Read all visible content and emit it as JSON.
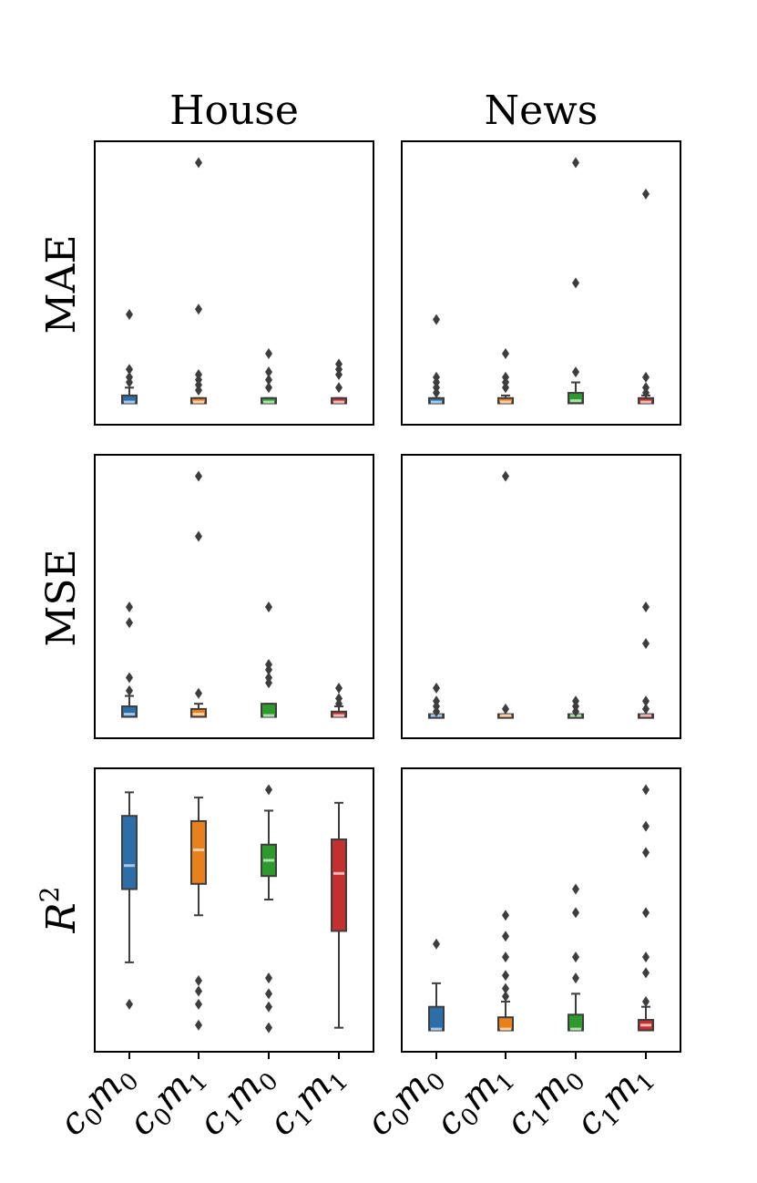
{
  "chart_data": {
    "type": "box",
    "columns": [
      "House",
      "News"
    ],
    "rows": [
      "MAE",
      "MSE",
      "R^2"
    ],
    "row_label_display": {
      "MAE": "MAE",
      "MSE": "MSE",
      "R^2": "R"
    },
    "categories": [
      {
        "base": "c",
        "sub1": "0",
        "mid": "m",
        "sub2": "0"
      },
      {
        "base": "c",
        "sub1": "0",
        "mid": "m",
        "sub2": "1"
      },
      {
        "base": "c",
        "sub1": "1",
        "mid": "m",
        "sub2": "0"
      },
      {
        "base": "c",
        "sub1": "1",
        "mid": "m",
        "sub2": "1"
      }
    ],
    "colors": [
      "#2c6ea8",
      "#e8801c",
      "#2e9a2e",
      "#c43030"
    ],
    "median_colors": [
      "#a8c8e8",
      "#ffd0a8",
      "#b0e0b0",
      "#f0b8b8"
    ],
    "ylim": [
      0,
      1
    ],
    "grid": false,
    "panels": [
      {
        "row": "MAE",
        "col": "House",
        "boxes": [
          {
            "q1": 0.04,
            "median": 0.045,
            "q3": 0.07,
            "wlo": 0.04,
            "whi": 0.1,
            "outliers": [
              0.38,
              0.17,
              0.12,
              0.14
            ]
          },
          {
            "q1": 0.04,
            "median": 0.045,
            "q3": 0.06,
            "wlo": 0.04,
            "whi": 0.06,
            "outliers": [
              0.96,
              0.4,
              0.15,
              0.13,
              0.11,
              0.09
            ]
          },
          {
            "q1": 0.04,
            "median": 0.045,
            "q3": 0.06,
            "wlo": 0.04,
            "whi": 0.06,
            "outliers": [
              0.23,
              0.16,
              0.13,
              0.1
            ]
          },
          {
            "q1": 0.04,
            "median": 0.045,
            "q3": 0.06,
            "wlo": 0.04,
            "whi": 0.06,
            "outliers": [
              0.19,
              0.17,
              0.15,
              0.1
            ]
          }
        ]
      },
      {
        "row": "MAE",
        "col": "News",
        "boxes": [
          {
            "q1": 0.04,
            "median": 0.045,
            "q3": 0.06,
            "wlo": 0.04,
            "whi": 0.06,
            "outliers": [
              0.36,
              0.14,
              0.12,
              0.1,
              0.08
            ]
          },
          {
            "q1": 0.04,
            "median": 0.045,
            "q3": 0.06,
            "wlo": 0.04,
            "whi": 0.07,
            "outliers": [
              0.23,
              0.14,
              0.12,
              0.1
            ]
          },
          {
            "q1": 0.04,
            "median": 0.05,
            "q3": 0.08,
            "wlo": 0.04,
            "whi": 0.12,
            "outliers": [
              0.96,
              0.5,
              0.16
            ]
          },
          {
            "q1": 0.04,
            "median": 0.045,
            "q3": 0.06,
            "wlo": 0.04,
            "whi": 0.07,
            "outliers": [
              0.84,
              0.14,
              0.1,
              0.08
            ]
          }
        ]
      },
      {
        "row": "MSE",
        "col": "House",
        "boxes": [
          {
            "q1": 0.04,
            "median": 0.05,
            "q3": 0.08,
            "wlo": 0.04,
            "whi": 0.12,
            "outliers": [
              0.46,
              0.4,
              0.19,
              0.14
            ]
          },
          {
            "q1": 0.04,
            "median": 0.05,
            "q3": 0.07,
            "wlo": 0.04,
            "whi": 0.09,
            "outliers": [
              0.96,
              0.73,
              0.13
            ]
          },
          {
            "q1": 0.04,
            "median": 0.045,
            "q3": 0.09,
            "wlo": 0.04,
            "whi": 0.09,
            "outliers": [
              0.46,
              0.24,
              0.22,
              0.19,
              0.17
            ]
          },
          {
            "q1": 0.04,
            "median": 0.045,
            "q3": 0.06,
            "wlo": 0.04,
            "whi": 0.08,
            "outliers": [
              0.15,
              0.11,
              0.09
            ]
          }
        ]
      },
      {
        "row": "MSE",
        "col": "News",
        "boxes": [
          {
            "q1": 0.04,
            "median": 0.045,
            "q3": 0.05,
            "wlo": 0.04,
            "whi": 0.05,
            "outliers": [
              0.15,
              0.1,
              0.08,
              0.06
            ]
          },
          {
            "q1": 0.04,
            "median": 0.045,
            "q3": 0.05,
            "wlo": 0.04,
            "whi": 0.05,
            "outliers": [
              0.96,
              0.07
            ]
          },
          {
            "q1": 0.04,
            "median": 0.045,
            "q3": 0.05,
            "wlo": 0.04,
            "whi": 0.05,
            "outliers": [
              0.1,
              0.08,
              0.06
            ]
          },
          {
            "q1": 0.04,
            "median": 0.045,
            "q3": 0.05,
            "wlo": 0.04,
            "whi": 0.05,
            "outliers": [
              0.46,
              0.32,
              0.1,
              0.07
            ]
          }
        ]
      },
      {
        "row": "R^2",
        "col": "House",
        "boxes": [
          {
            "q1": 0.58,
            "median": 0.67,
            "q3": 0.86,
            "wlo": 0.3,
            "whi": 0.95,
            "outliers": [
              0.14
            ]
          },
          {
            "q1": 0.6,
            "median": 0.73,
            "q3": 0.84,
            "wlo": 0.48,
            "whi": 0.93,
            "outliers": [
              0.23,
              0.19,
              0.14,
              0.06
            ]
          },
          {
            "q1": 0.63,
            "median": 0.69,
            "q3": 0.75,
            "wlo": 0.54,
            "whi": 0.88,
            "outliers": [
              0.96,
              0.24,
              0.18,
              0.13,
              0.05
            ]
          },
          {
            "q1": 0.42,
            "median": 0.64,
            "q3": 0.77,
            "wlo": 0.05,
            "whi": 0.91,
            "outliers": []
          }
        ]
      },
      {
        "row": "R^2",
        "col": "News",
        "boxes": [
          {
            "q1": 0.04,
            "median": 0.045,
            "q3": 0.13,
            "wlo": 0.04,
            "whi": 0.22,
            "outliers": [
              0.37
            ]
          },
          {
            "q1": 0.04,
            "median": 0.045,
            "q3": 0.09,
            "wlo": 0.04,
            "whi": 0.15,
            "outliers": [
              0.48,
              0.4,
              0.32,
              0.25,
              0.2,
              0.17
            ]
          },
          {
            "q1": 0.04,
            "median": 0.045,
            "q3": 0.1,
            "wlo": 0.04,
            "whi": 0.18,
            "outliers": [
              0.58,
              0.49,
              0.32,
              0.24
            ]
          },
          {
            "q1": 0.04,
            "median": 0.06,
            "q3": 0.08,
            "wlo": 0.04,
            "whi": 0.13,
            "outliers": [
              0.96,
              0.82,
              0.72,
              0.49,
              0.32,
              0.26,
              0.15
            ]
          }
        ]
      }
    ]
  }
}
